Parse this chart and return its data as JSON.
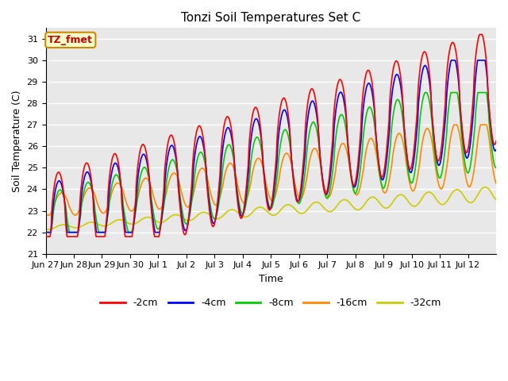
{
  "title": "Tonzi Soil Temperatures Set C",
  "xlabel": "Time",
  "ylabel": "Soil Temperature (C)",
  "ylim": [
    21.0,
    31.5
  ],
  "yticks": [
    21.0,
    22.0,
    23.0,
    24.0,
    25.0,
    26.0,
    27.0,
    28.0,
    29.0,
    30.0,
    31.0
  ],
  "fig_bg_color": "#ffffff",
  "plot_bg_color": "#e8e8e8",
  "grid_color": "#ffffff",
  "series_colors": {
    "-2cm": "#ff0000",
    "-4cm": "#0000ff",
    "-8cm": "#00cc00",
    "-16cm": "#ff8800",
    "-32cm": "#cccc00"
  },
  "annotation_text": "TZ_fmet",
  "annotation_bg": "#ffffcc",
  "annotation_border": "#cc8800",
  "annotation_text_color": "#cc0000",
  "x_tick_labels": [
    "Jun 27",
    "Jun 28",
    "Jun 29",
    "Jun 30",
    "Jul 1",
    "Jul 2",
    "Jul 3",
    "Jul 4",
    "Jul 5",
    "Jul 6",
    "Jul 7",
    "Jul 8",
    "Jul 9",
    "Jul 10",
    "Jul 11",
    "Jul 12"
  ],
  "num_days": 16,
  "line_width": 1.2,
  "title_fontsize": 11,
  "tick_fontsize": 8,
  "label_fontsize": 9,
  "legend_fontsize": 9
}
